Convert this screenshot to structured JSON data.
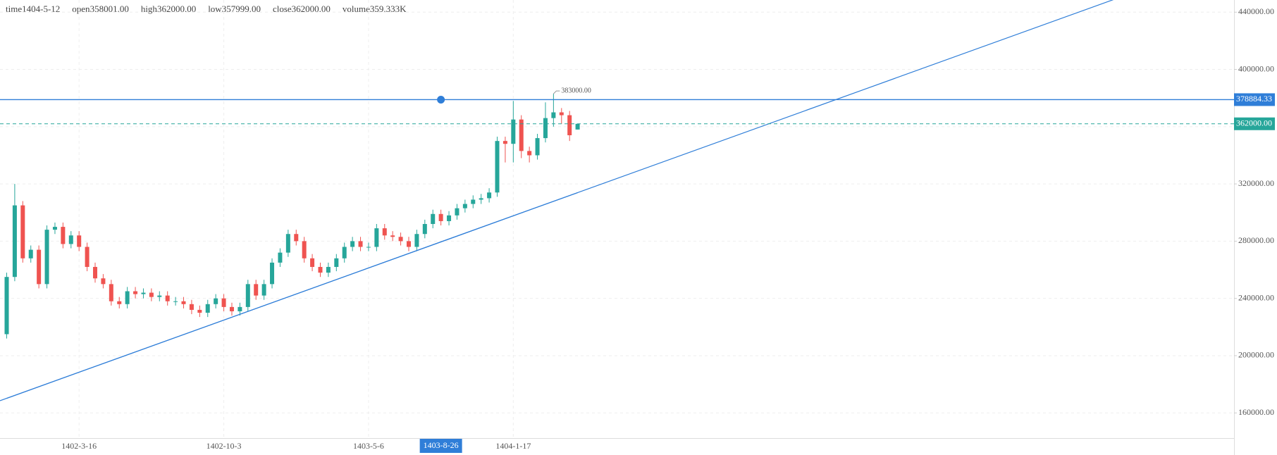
{
  "header": [
    {
      "label": "time",
      "value": "1404-5-12"
    },
    {
      "label": "open",
      "value": "358001.00"
    },
    {
      "label": "high",
      "value": "362000.00"
    },
    {
      "label": "low",
      "value": "357999.00"
    },
    {
      "label": "close",
      "value": "362000.00"
    },
    {
      "label": "volume",
      "value": "359.333K"
    }
  ],
  "chart_data": {
    "type": "candlestick",
    "categories": [
      null,
      null,
      null,
      null,
      null,
      null,
      null,
      null,
      null,
      "1402-3-16",
      null,
      null,
      null,
      null,
      null,
      null,
      null,
      null,
      null,
      null,
      null,
      null,
      null,
      null,
      null,
      null,
      null,
      "1402-10-3",
      null,
      null,
      null,
      null,
      null,
      null,
      null,
      null,
      null,
      null,
      null,
      null,
      null,
      null,
      null,
      null,
      null,
      "1403-5-6",
      null,
      null,
      null,
      null,
      null,
      null,
      null,
      null,
      "1403-8-26",
      null,
      null,
      null,
      null,
      null,
      null,
      null,
      null,
      "1404-1-17",
      null,
      null,
      null,
      null,
      null,
      null,
      null,
      null
    ],
    "selected_category": 54,
    "series": [
      {
        "up_color": "#26a69a",
        "down_color": "#ef5350",
        "open": [
          215000,
          255000,
          305000,
          268000,
          274000,
          250000,
          288000,
          290000,
          278000,
          284000,
          276000,
          262000,
          254000,
          250000,
          238000,
          236000,
          245000,
          243000,
          244000,
          241000,
          242000,
          238000,
          238000,
          236000,
          232000,
          230000,
          236000,
          240000,
          234000,
          231000,
          234000,
          250000,
          242000,
          250000,
          265000,
          272000,
          285000,
          280000,
          268000,
          262000,
          258000,
          262000,
          268000,
          276000,
          280000,
          276000,
          276000,
          289000,
          284000,
          283000,
          280000,
          276000,
          285000,
          292000,
          299000,
          294000,
          298000,
          303000,
          306000,
          309000,
          310000,
          314000,
          350000,
          348000,
          365000,
          343000,
          340000,
          352000,
          366000,
          370000,
          368000,
          358001
        ],
        "high": [
          258000,
          320000,
          308000,
          277000,
          277000,
          291000,
          293000,
          293000,
          287000,
          287000,
          279000,
          265000,
          257000,
          253000,
          241000,
          248000,
          248000,
          247000,
          247000,
          245000,
          245000,
          241000,
          241000,
          239000,
          235000,
          239000,
          243000,
          243000,
          237000,
          237000,
          253000,
          253000,
          253000,
          268000,
          275000,
          288000,
          288000,
          283000,
          271000,
          265000,
          265000,
          271000,
          279000,
          283000,
          283000,
          279000,
          292000,
          292000,
          287000,
          286000,
          283000,
          288000,
          295000,
          302000,
          302000,
          301000,
          306000,
          309000,
          312000,
          313000,
          317000,
          353000,
          353000,
          378000,
          368000,
          346000,
          355000,
          377000,
          383000,
          373000,
          371000,
          362000
        ],
        "low": [
          212000,
          252000,
          265000,
          265000,
          247000,
          247000,
          285000,
          275000,
          275000,
          273000,
          259000,
          251000,
          247000,
          235000,
          233000,
          233000,
          240000,
          240000,
          238000,
          238000,
          235000,
          235000,
          233000,
          229000,
          227000,
          227000,
          233000,
          231000,
          228000,
          228000,
          231000,
          239000,
          239000,
          247000,
          262000,
          269000,
          277000,
          265000,
          259000,
          255000,
          255000,
          259000,
          265000,
          273000,
          273000,
          273000,
          273000,
          281000,
          280000,
          277000,
          273000,
          273000,
          282000,
          289000,
          291000,
          291000,
          295000,
          300000,
          303000,
          306000,
          307000,
          311000,
          335000,
          335000,
          338000,
          335000,
          337000,
          349000,
          360000,
          362000,
          350000,
          357999
        ],
        "close": [
          255000,
          305000,
          268000,
          274000,
          250000,
          288000,
          290000,
          278000,
          284000,
          276000,
          262000,
          254000,
          250000,
          238000,
          236000,
          245000,
          243000,
          244000,
          241000,
          242000,
          238000,
          238000,
          236000,
          232000,
          230000,
          236000,
          240000,
          234000,
          231000,
          234000,
          250000,
          242000,
          250000,
          265000,
          272000,
          285000,
          280000,
          268000,
          262000,
          258000,
          262000,
          268000,
          276000,
          280000,
          276000,
          276000,
          289000,
          284000,
          283000,
          280000,
          276000,
          285000,
          292000,
          299000,
          294000,
          298000,
          303000,
          306000,
          309000,
          310000,
          314000,
          350000,
          348000,
          365000,
          343000,
          340000,
          352000,
          366000,
          370000,
          368000,
          354000,
          362000
        ]
      }
    ],
    "ylim": [
      142400,
      448500
    ],
    "yticks": [
      {
        "value": 160000,
        "label": "160000.00"
      },
      {
        "value": 200000,
        "label": "200000.00"
      },
      {
        "value": 240000,
        "label": "240000.00"
      },
      {
        "value": 280000,
        "label": "280000.00"
      },
      {
        "value": 320000,
        "label": "320000.00"
      },
      {
        "value": 360000,
        "label": "360000.00"
      },
      {
        "value": 400000,
        "label": "400000.00"
      },
      {
        "value": 440000,
        "label": "440000.00"
      }
    ],
    "grid": true,
    "horizontal_line": {
      "value": 378884.33,
      "label": "378884.33",
      "color": "#2f7ed8"
    },
    "last_price": {
      "value": 362000,
      "label": "362000.00",
      "color": "#26a69a"
    },
    "max_label": {
      "value": 383000,
      "label": "383000.00"
    },
    "trend_line": {
      "x": [
        0,
        71
      ],
      "values": [
        170200,
        313900
      ],
      "color": "#2f7ed8"
    }
  }
}
